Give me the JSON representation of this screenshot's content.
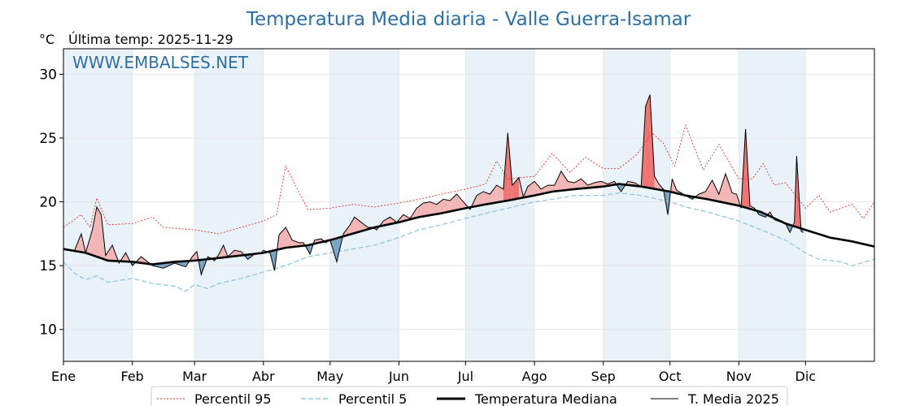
{
  "chart_data": {
    "type": "line",
    "title": "Temperatura Media diaria - Valle Guerra-Isamar",
    "unit": "°C",
    "subtitle": "Última temp: 2025-11-29",
    "watermark": "WWW.EMBALSES.NET",
    "x_months": [
      "Ene",
      "Feb",
      "Mar",
      "Abr",
      "May",
      "Jun",
      "Jul",
      "Ago",
      "Sep",
      "Oct",
      "Nov",
      "Dic"
    ],
    "month_starts_day": [
      0,
      31,
      59,
      90,
      120,
      151,
      181,
      212,
      243,
      273,
      304,
      334
    ],
    "xlim_days": [
      0,
      365
    ],
    "ylim": [
      7.5,
      32
    ],
    "y_ticks": [
      10,
      15,
      20,
      25,
      30
    ],
    "grid": true,
    "legend_position": "bottom",
    "legend": [
      "Percentil 95",
      "Percentil 5",
      "Temperatura Mediana",
      "T. Media 2025"
    ],
    "colors": {
      "title": "#2e6fa3",
      "p95": "#e8312a",
      "p5": "#90c8dc",
      "median": "#000000",
      "current": "#000000",
      "fill_above": "#f2b6b6",
      "fill_above_strong": "#ee7474",
      "fill_below": "#7ba3c4",
      "band": "#e9f1f9"
    },
    "series": {
      "median_key": [
        [
          0,
          16.3
        ],
        [
          10,
          16.0
        ],
        [
          20,
          15.4
        ],
        [
          31,
          15.3
        ],
        [
          40,
          15.1
        ],
        [
          50,
          15.3
        ],
        [
          59,
          15.4
        ],
        [
          70,
          15.6
        ],
        [
          80,
          15.8
        ],
        [
          90,
          16.0
        ],
        [
          100,
          16.4
        ],
        [
          110,
          16.6
        ],
        [
          120,
          17.0
        ],
        [
          130,
          17.5
        ],
        [
          140,
          18.0
        ],
        [
          151,
          18.4
        ],
        [
          160,
          18.8
        ],
        [
          170,
          19.1
        ],
        [
          181,
          19.5
        ],
        [
          190,
          19.8
        ],
        [
          200,
          20.1
        ],
        [
          212,
          20.5
        ],
        [
          220,
          20.8
        ],
        [
          230,
          21.0
        ],
        [
          243,
          21.2
        ],
        [
          250,
          21.4
        ],
        [
          260,
          21.2
        ],
        [
          273,
          20.8
        ],
        [
          280,
          20.5
        ],
        [
          290,
          20.2
        ],
        [
          304,
          19.7
        ],
        [
          314,
          19.2
        ],
        [
          325,
          18.3
        ],
        [
          334,
          17.8
        ],
        [
          345,
          17.2
        ],
        [
          355,
          16.9
        ],
        [
          365,
          16.5
        ]
      ],
      "p95_key": [
        [
          0,
          18.0
        ],
        [
          8,
          19.0
        ],
        [
          12,
          18.0
        ],
        [
          15,
          20.3
        ],
        [
          20,
          18.2
        ],
        [
          31,
          18.3
        ],
        [
          40,
          18.8
        ],
        [
          45,
          18.0
        ],
        [
          59,
          17.8
        ],
        [
          70,
          17.5
        ],
        [
          80,
          18.0
        ],
        [
          90,
          18.5
        ],
        [
          96,
          19.0
        ],
        [
          100,
          22.8
        ],
        [
          110,
          19.4
        ],
        [
          120,
          19.5
        ],
        [
          130,
          19.8
        ],
        [
          140,
          19.6
        ],
        [
          151,
          19.9
        ],
        [
          160,
          20.2
        ],
        [
          170,
          20.6
        ],
        [
          181,
          21.0
        ],
        [
          190,
          21.4
        ],
        [
          195,
          23.2
        ],
        [
          200,
          21.8
        ],
        [
          212,
          22.0
        ],
        [
          220,
          23.8
        ],
        [
          228,
          22.3
        ],
        [
          235,
          23.5
        ],
        [
          243,
          22.6
        ],
        [
          250,
          22.6
        ],
        [
          258,
          23.7
        ],
        [
          265,
          25.4
        ],
        [
          270,
          24.6
        ],
        [
          275,
          22.8
        ],
        [
          280,
          26.0
        ],
        [
          288,
          22.5
        ],
        [
          295,
          24.5
        ],
        [
          304,
          21.8
        ],
        [
          310,
          21.8
        ],
        [
          315,
          23.0
        ],
        [
          320,
          21.3
        ],
        [
          325,
          21.5
        ],
        [
          334,
          19.5
        ],
        [
          340,
          20.5
        ],
        [
          345,
          19.2
        ],
        [
          355,
          19.8
        ],
        [
          360,
          18.7
        ],
        [
          365,
          20.0
        ]
      ],
      "p5_key": [
        [
          0,
          15.3
        ],
        [
          5,
          14.4
        ],
        [
          10,
          13.9
        ],
        [
          15,
          14.2
        ],
        [
          20,
          13.7
        ],
        [
          31,
          14.0
        ],
        [
          40,
          13.6
        ],
        [
          50,
          13.4
        ],
        [
          55,
          13.0
        ],
        [
          59,
          13.5
        ],
        [
          65,
          13.2
        ],
        [
          70,
          13.6
        ],
        [
          80,
          14.0
        ],
        [
          90,
          14.5
        ],
        [
          100,
          15.0
        ],
        [
          110,
          15.7
        ],
        [
          120,
          16.0
        ],
        [
          130,
          16.3
        ],
        [
          140,
          16.6
        ],
        [
          151,
          17.2
        ],
        [
          160,
          17.8
        ],
        [
          170,
          18.2
        ],
        [
          181,
          18.7
        ],
        [
          190,
          19.1
        ],
        [
          200,
          19.5
        ],
        [
          212,
          20.0
        ],
        [
          220,
          20.2
        ],
        [
          230,
          20.5
        ],
        [
          243,
          20.5
        ],
        [
          250,
          20.7
        ],
        [
          260,
          20.5
        ],
        [
          273,
          20.0
        ],
        [
          280,
          19.6
        ],
        [
          290,
          19.2
        ],
        [
          304,
          18.5
        ],
        [
          314,
          17.8
        ],
        [
          325,
          17.0
        ],
        [
          334,
          16.0
        ],
        [
          340,
          15.5
        ],
        [
          350,
          15.3
        ],
        [
          355,
          15.0
        ],
        [
          365,
          15.5
        ]
      ],
      "current_key": [
        [
          0,
          16.3
        ],
        [
          5,
          16.2
        ],
        [
          8,
          17.5
        ],
        [
          10,
          16.0
        ],
        [
          13,
          17.8
        ],
        [
          15,
          19.6
        ],
        [
          17,
          19.0
        ],
        [
          19,
          15.8
        ],
        [
          22,
          16.6
        ],
        [
          25,
          15.2
        ],
        [
          28,
          16.0
        ],
        [
          31,
          15.0
        ],
        [
          35,
          15.7
        ],
        [
          40,
          15.0
        ],
        [
          45,
          14.8
        ],
        [
          50,
          15.2
        ],
        [
          55,
          14.9
        ],
        [
          58,
          15.7
        ],
        [
          60,
          16.1
        ],
        [
          62,
          14.3
        ],
        [
          65,
          15.7
        ],
        [
          68,
          15.4
        ],
        [
          70,
          15.9
        ],
        [
          72,
          16.6
        ],
        [
          74,
          15.7
        ],
        [
          77,
          16.2
        ],
        [
          80,
          16.1
        ],
        [
          83,
          15.5
        ],
        [
          86,
          15.9
        ],
        [
          89,
          16.0
        ],
        [
          90,
          16.2
        ],
        [
          93,
          16.0
        ],
        [
          95,
          14.6
        ],
        [
          97,
          17.4
        ],
        [
          100,
          18.0
        ],
        [
          103,
          17.0
        ],
        [
          106,
          16.8
        ],
        [
          108,
          16.8
        ],
        [
          111,
          15.9
        ],
        [
          113,
          17.0
        ],
        [
          116,
          17.1
        ],
        [
          118,
          16.8
        ],
        [
          120,
          17.0
        ],
        [
          123,
          15.3
        ],
        [
          126,
          17.5
        ],
        [
          129,
          18.2
        ],
        [
          131,
          18.8
        ],
        [
          134,
          18.4
        ],
        [
          137,
          18.0
        ],
        [
          139,
          18.0
        ],
        [
          141,
          17.8
        ],
        [
          144,
          18.5
        ],
        [
          147,
          18.8
        ],
        [
          150,
          18.4
        ],
        [
          153,
          19.0
        ],
        [
          156,
          18.7
        ],
        [
          159,
          19.5
        ],
        [
          162,
          19.9
        ],
        [
          165,
          20.0
        ],
        [
          168,
          19.8
        ],
        [
          171,
          20.2
        ],
        [
          174,
          20.1
        ],
        [
          177,
          20.6
        ],
        [
          180,
          20.0
        ],
        [
          183,
          19.4
        ],
        [
          186,
          20.5
        ],
        [
          189,
          20.8
        ],
        [
          192,
          20.6
        ],
        [
          195,
          21.3
        ],
        [
          198,
          21.0
        ],
        [
          200,
          25.4
        ],
        [
          202,
          21.3
        ],
        [
          205,
          21.9
        ],
        [
          207,
          20.4
        ],
        [
          209,
          21.2
        ],
        [
          212,
          21.6
        ],
        [
          215,
          21.0
        ],
        [
          218,
          21.3
        ],
        [
          221,
          21.3
        ],
        [
          224,
          22.4
        ],
        [
          227,
          21.6
        ],
        [
          230,
          21.5
        ],
        [
          233,
          21.8
        ],
        [
          236,
          21.3
        ],
        [
          239,
          21.5
        ],
        [
          242,
          21.6
        ],
        [
          245,
          21.4
        ],
        [
          248,
          21.6
        ],
        [
          251,
          20.8
        ],
        [
          254,
          21.6
        ],
        [
          257,
          21.5
        ],
        [
          260,
          21.2
        ],
        [
          262,
          27.5
        ],
        [
          264,
          28.4
        ],
        [
          266,
          22.0
        ],
        [
          268,
          21.4
        ],
        [
          270,
          21.0
        ],
        [
          272,
          19.0
        ],
        [
          274,
          21.8
        ],
        [
          276,
          20.9
        ],
        [
          278,
          20.7
        ],
        [
          280,
          20.5
        ],
        [
          283,
          20.2
        ],
        [
          286,
          20.6
        ],
        [
          289,
          20.8
        ],
        [
          292,
          21.7
        ],
        [
          295,
          20.6
        ],
        [
          298,
          22.2
        ],
        [
          301,
          20.7
        ],
        [
          303,
          20.6
        ],
        [
          305,
          19.5
        ],
        [
          307,
          25.7
        ],
        [
          309,
          19.7
        ],
        [
          311,
          19.5
        ],
        [
          313,
          19.0
        ],
        [
          316,
          18.8
        ],
        [
          318,
          19.2
        ],
        [
          320,
          18.6
        ],
        [
          323,
          18.4
        ],
        [
          325,
          18.3
        ],
        [
          327,
          17.6
        ],
        [
          329,
          18.4
        ],
        [
          330,
          23.6
        ],
        [
          332,
          17.7
        ],
        [
          333,
          17.6
        ]
      ]
    }
  }
}
